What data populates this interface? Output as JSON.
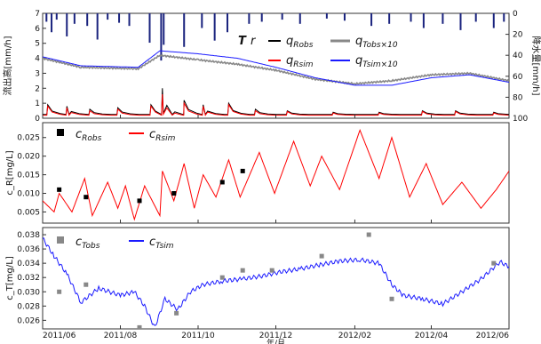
{
  "chart_data": [
    {
      "type": "line",
      "panel": "flow-and-rainfall",
      "ylabel_left": "流出高[mm/h]",
      "ylabel_right": "降水量[mm/h]",
      "ylim": [
        0,
        7
      ],
      "ylim_right_inverted": [
        0,
        100
      ],
      "yticks": [
        "7",
        "6",
        "5",
        "4",
        "3",
        "2",
        "1",
        "0"
      ],
      "yticks_right": [
        "0",
        "20",
        "40",
        "60",
        "80",
        "100"
      ],
      "legend": [
        {
          "symbol": "T",
          "label": "r",
          "color": "#1a237e"
        },
        {
          "label": "q_Robs",
          "color": "#000000"
        },
        {
          "label": "q_Tobs×10",
          "color": "#888888"
        },
        {
          "label": "q_Rsim",
          "color": "#ff0000"
        },
        {
          "label": "q_Tsim×10",
          "color": "#1a1aff"
        }
      ],
      "series": [
        {
          "name": "q_Tobs×10",
          "x": [
            "2011-06-01",
            "2011-07-01",
            "2011-08-15",
            "2011-09-01",
            "2011-10-01",
            "2011-11-01",
            "2011-12-01",
            "2012-01-01",
            "2012-02-01",
            "2012-03-01",
            "2012-04-01",
            "2012-05-01",
            "2012-06-01"
          ],
          "values": [
            4.0,
            3.4,
            3.3,
            4.2,
            3.9,
            3.6,
            3.2,
            2.6,
            2.3,
            2.5,
            2.9,
            3.0,
            2.5
          ]
        },
        {
          "name": "q_Tsim×10",
          "x": [
            "2011-06-01",
            "2011-07-01",
            "2011-08-15",
            "2011-09-01",
            "2011-10-01",
            "2011-11-01",
            "2011-12-01",
            "2012-01-01",
            "2012-02-01",
            "2012-03-01",
            "2012-04-01",
            "2012-05-01",
            "2012-06-01"
          ],
          "values": [
            4.1,
            3.5,
            3.4,
            4.5,
            4.3,
            4.0,
            3.4,
            2.7,
            2.2,
            2.2,
            2.7,
            2.9,
            2.4
          ]
        },
        {
          "name": "q_Robs",
          "baseline": 0.25,
          "peaks": [
            {
              "x": "2011-06-05",
              "y": 0.9
            },
            {
              "x": "2011-06-20",
              "y": 0.8
            },
            {
              "x": "2011-07-08",
              "y": 0.6
            },
            {
              "x": "2011-07-30",
              "y": 0.7
            },
            {
              "x": "2011-08-25",
              "y": 0.9
            },
            {
              "x": "2011-09-03",
              "y": 2.0
            },
            {
              "x": "2011-09-20",
              "y": 1.2
            },
            {
              "x": "2011-10-05",
              "y": 0.9
            },
            {
              "x": "2011-10-25",
              "y": 1.0
            },
            {
              "x": "2011-11-15",
              "y": 0.6
            },
            {
              "x": "2011-12-10",
              "y": 0.5
            },
            {
              "x": "2012-01-15",
              "y": 0.4
            },
            {
              "x": "2012-02-20",
              "y": 0.4
            },
            {
              "x": "2012-03-25",
              "y": 0.5
            },
            {
              "x": "2012-04-20",
              "y": 0.5
            },
            {
              "x": "2012-05-20",
              "y": 0.4
            }
          ]
        },
        {
          "name": "q_Rsim",
          "baseline": 0.2,
          "peaks": [
            {
              "x": "2011-06-05",
              "y": 0.8
            },
            {
              "x": "2011-06-20",
              "y": 0.7
            },
            {
              "x": "2011-07-08",
              "y": 0.5
            },
            {
              "x": "2011-07-30",
              "y": 0.6
            },
            {
              "x": "2011-08-25",
              "y": 0.8
            },
            {
              "x": "2011-09-03",
              "y": 1.6
            },
            {
              "x": "2011-09-20",
              "y": 1.0
            },
            {
              "x": "2011-10-05",
              "y": 0.8
            },
            {
              "x": "2011-10-25",
              "y": 0.9
            },
            {
              "x": "2011-11-15",
              "y": 0.5
            },
            {
              "x": "2011-12-10",
              "y": 0.45
            },
            {
              "x": "2012-01-15",
              "y": 0.35
            },
            {
              "x": "2012-02-20",
              "y": 0.35
            },
            {
              "x": "2012-03-25",
              "y": 0.45
            },
            {
              "x": "2012-04-20",
              "y": 0.45
            },
            {
              "x": "2012-05-20",
              "y": 0.35
            }
          ]
        },
        {
          "name": "r",
          "type": "bar-inverted",
          "x": [
            "2011-06-04",
            "2011-06-08",
            "2011-06-12",
            "2011-06-20",
            "2011-06-26",
            "2011-07-06",
            "2011-07-14",
            "2011-07-22",
            "2011-07-31",
            "2011-08-08",
            "2011-08-24",
            "2011-09-02",
            "2011-09-04",
            "2011-09-20",
            "2011-10-04",
            "2011-10-14",
            "2011-10-24",
            "2011-11-10",
            "2011-11-20",
            "2011-12-06",
            "2011-12-20",
            "2012-01-10",
            "2012-01-24",
            "2012-02-14",
            "2012-02-28",
            "2012-03-16",
            "2012-03-26",
            "2012-04-10",
            "2012-04-24",
            "2012-05-06",
            "2012-05-20",
            "2012-05-28"
          ],
          "values": [
            8,
            18,
            6,
            22,
            10,
            12,
            25,
            6,
            9,
            12,
            28,
            45,
            30,
            32,
            14,
            26,
            18,
            10,
            8,
            6,
            10,
            5,
            7,
            12,
            10,
            8,
            14,
            10,
            16,
            8,
            14,
            8
          ]
        }
      ]
    },
    {
      "type": "line",
      "panel": "cR",
      "ylabel": "c_R[mg/L]",
      "ylim": [
        0.002,
        0.029
      ],
      "yticks": [
        "0.025",
        "0.020",
        "0.015",
        "0.010",
        "0.005"
      ],
      "legend": [
        {
          "label": "C_Robs",
          "color": "#000000",
          "marker": "square"
        },
        {
          "label": "C_Rsim",
          "color": "#ff0000"
        }
      ],
      "series": [
        {
          "name": "C_Robs",
          "x": [
            "2011-06-14",
            "2011-07-05",
            "2011-08-16",
            "2011-09-12",
            "2011-10-20",
            "2011-11-05"
          ],
          "values": [
            0.011,
            0.009,
            0.008,
            0.01,
            0.013,
            0.016
          ]
        },
        {
          "name": "C_Rsim",
          "x": [
            "2011-06-01",
            "2011-06-10",
            "2011-06-14",
            "2011-06-24",
            "2011-07-04",
            "2011-07-10",
            "2011-07-22",
            "2011-07-30",
            "2011-08-05",
            "2011-08-12",
            "2011-08-20",
            "2011-09-01",
            "2011-09-03",
            "2011-09-12",
            "2011-09-20",
            "2011-09-28",
            "2011-10-05",
            "2011-10-15",
            "2011-10-25",
            "2011-11-03",
            "2011-11-18",
            "2011-11-30",
            "2011-12-15",
            "2011-12-28",
            "2012-01-06",
            "2012-01-20",
            "2012-02-05",
            "2012-02-20",
            "2012-03-01",
            "2012-03-15",
            "2012-03-28",
            "2012-04-10",
            "2012-04-25",
            "2012-05-10",
            "2012-05-22",
            "2012-06-01"
          ],
          "values": [
            0.008,
            0.005,
            0.01,
            0.005,
            0.014,
            0.004,
            0.013,
            0.006,
            0.012,
            0.003,
            0.012,
            0.004,
            0.016,
            0.008,
            0.018,
            0.006,
            0.015,
            0.009,
            0.019,
            0.009,
            0.021,
            0.01,
            0.024,
            0.012,
            0.02,
            0.011,
            0.027,
            0.014,
            0.025,
            0.009,
            0.018,
            0.007,
            0.013,
            0.006,
            0.011,
            0.016
          ]
        }
      ]
    },
    {
      "type": "line",
      "panel": "cT",
      "ylabel": "c_T[mg/L]",
      "xlabel": "年/月",
      "ylim": [
        0.0248,
        0.039
      ],
      "yticks": [
        "0.038",
        "0.036",
        "0.034",
        "0.032",
        "0.030",
        "0.028",
        "0.026"
      ],
      "xticks": [
        "2011/06",
        "2011/08",
        "2011/10",
        "2011/12",
        "2012/02",
        "2012/04",
        "2012/06"
      ],
      "legend": [
        {
          "label": "C_Tobs",
          "color": "#888888",
          "marker": "square"
        },
        {
          "label": "C_Tsim",
          "color": "#1a1aff"
        }
      ],
      "series": [
        {
          "name": "C_Tobs",
          "x": [
            "2011-06-14",
            "2011-07-05",
            "2011-08-16",
            "2011-09-14",
            "2011-10-20",
            "2011-11-05",
            "2011-11-28",
            "2012-01-06",
            "2012-02-12",
            "2012-03-01",
            "2012-05-20"
          ],
          "values": [
            0.03,
            0.031,
            0.025,
            0.027,
            0.032,
            0.033,
            0.033,
            0.035,
            0.038,
            0.029,
            0.034
          ]
        },
        {
          "name": "C_Tsim",
          "x": [
            "2011-06-01",
            "2011-06-10",
            "2011-06-20",
            "2011-07-01",
            "2011-07-15",
            "2011-08-01",
            "2011-08-12",
            "2011-08-20",
            "2011-08-28",
            "2011-09-05",
            "2011-09-15",
            "2011-09-25",
            "2011-10-05",
            "2011-10-20",
            "2011-11-05",
            "2011-11-20",
            "2011-12-05",
            "2011-12-20",
            "2012-01-05",
            "2012-01-20",
            "2012-02-05",
            "2012-02-20",
            "2012-03-01",
            "2012-03-10",
            "2012-03-25",
            "2012-04-10",
            "2012-04-25",
            "2012-05-10",
            "2012-05-25",
            "2012-06-01"
          ],
          "values": [
            0.0375,
            0.035,
            0.0325,
            0.0285,
            0.0305,
            0.0295,
            0.03,
            0.028,
            0.025,
            0.029,
            0.0275,
            0.03,
            0.031,
            0.0315,
            0.0318,
            0.0322,
            0.0328,
            0.0332,
            0.0338,
            0.0343,
            0.0345,
            0.034,
            0.031,
            0.0295,
            0.029,
            0.0283,
            0.03,
            0.0318,
            0.0342,
            0.0335
          ]
        }
      ]
    }
  ]
}
